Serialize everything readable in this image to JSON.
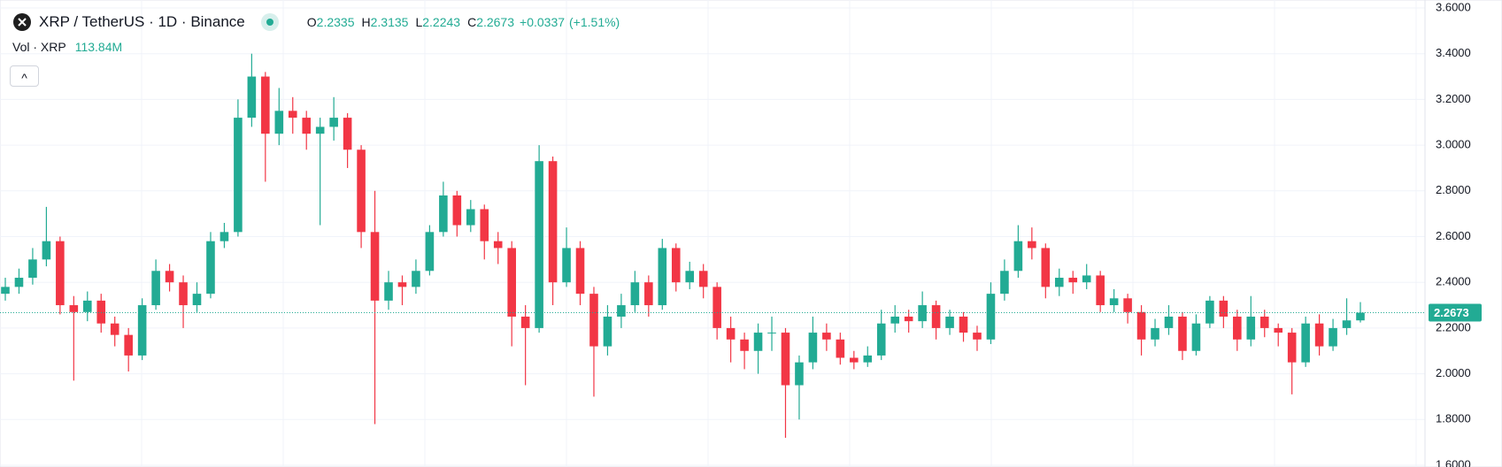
{
  "chart_data": {
    "type": "candlestick",
    "title": "XRP / TetherUS · 1D · Binance",
    "ohlc_labels": [
      "O",
      "H",
      "L",
      "C"
    ],
    "change": {
      "value": 0.0337,
      "label": "+0.0337"
    },
    "change_pct": {
      "value": 1.51,
      "label": "(+1.51%)"
    },
    "volume_label": "Vol · XRP",
    "volume_value": "113.84M",
    "up_color": "#22ab94",
    "down_color": "#f23645",
    "ylim": [
      1.6,
      3.6
    ],
    "yticks": [
      {
        "value": 1.6,
        "label": "1.6000"
      },
      {
        "value": 1.8,
        "label": "1.8000"
      },
      {
        "value": 2.0,
        "label": "2.0000"
      },
      {
        "value": 2.2,
        "label": "2.2000"
      },
      {
        "value": 2.4,
        "label": "2.4000"
      },
      {
        "value": 2.6,
        "label": "2.6000"
      },
      {
        "value": 2.8,
        "label": "2.8000"
      },
      {
        "value": 3.0,
        "label": "3.0000"
      },
      {
        "value": 3.2,
        "label": "3.2000"
      },
      {
        "value": 3.4,
        "label": "3.4000"
      },
      {
        "value": 3.6,
        "label": "3.6000"
      }
    ],
    "grid": true,
    "candles": [
      [
        2.35,
        2.42,
        2.32,
        2.38
      ],
      [
        2.38,
        2.46,
        2.35,
        2.42
      ],
      [
        2.42,
        2.55,
        2.39,
        2.5
      ],
      [
        2.5,
        2.73,
        2.47,
        2.58
      ],
      [
        2.58,
        2.6,
        2.26,
        2.3
      ],
      [
        2.3,
        2.34,
        1.97,
        2.27
      ],
      [
        2.27,
        2.36,
        2.23,
        2.32
      ],
      [
        2.32,
        2.35,
        2.18,
        2.22
      ],
      [
        2.22,
        2.25,
        2.12,
        2.17
      ],
      [
        2.17,
        2.2,
        2.01,
        2.08
      ],
      [
        2.08,
        2.33,
        2.06,
        2.3
      ],
      [
        2.3,
        2.5,
        2.28,
        2.45
      ],
      [
        2.45,
        2.48,
        2.36,
        2.4
      ],
      [
        2.4,
        2.43,
        2.2,
        2.3
      ],
      [
        2.3,
        2.4,
        2.27,
        2.35
      ],
      [
        2.35,
        2.62,
        2.33,
        2.58
      ],
      [
        2.58,
        2.66,
        2.55,
        2.62
      ],
      [
        2.62,
        3.2,
        2.6,
        3.12
      ],
      [
        3.12,
        3.4,
        3.08,
        3.3
      ],
      [
        3.3,
        3.32,
        2.84,
        3.05
      ],
      [
        3.05,
        3.25,
        3.0,
        3.15
      ],
      [
        3.15,
        3.21,
        3.05,
        3.12
      ],
      [
        3.12,
        3.15,
        2.98,
        3.05
      ],
      [
        3.05,
        3.12,
        2.65,
        3.08
      ],
      [
        3.08,
        3.21,
        3.02,
        3.12
      ],
      [
        3.12,
        3.14,
        2.9,
        2.98
      ],
      [
        2.98,
        3.0,
        2.55,
        2.62
      ],
      [
        2.62,
        2.8,
        1.78,
        2.32
      ],
      [
        2.32,
        2.45,
        2.28,
        2.4
      ],
      [
        2.4,
        2.43,
        2.3,
        2.38
      ],
      [
        2.38,
        2.5,
        2.35,
        2.45
      ],
      [
        2.45,
        2.65,
        2.43,
        2.62
      ],
      [
        2.62,
        2.84,
        2.6,
        2.78
      ],
      [
        2.78,
        2.8,
        2.6,
        2.65
      ],
      [
        2.65,
        2.76,
        2.62,
        2.72
      ],
      [
        2.72,
        2.74,
        2.5,
        2.58
      ],
      [
        2.58,
        2.62,
        2.48,
        2.55
      ],
      [
        2.55,
        2.58,
        2.12,
        2.25
      ],
      [
        2.25,
        2.3,
        1.95,
        2.2
      ],
      [
        2.2,
        3.0,
        2.18,
        2.93
      ],
      [
        2.93,
        2.95,
        2.3,
        2.4
      ],
      [
        2.4,
        2.64,
        2.38,
        2.55
      ],
      [
        2.55,
        2.58,
        2.3,
        2.35
      ],
      [
        2.35,
        2.38,
        1.9,
        2.12
      ],
      [
        2.12,
        2.3,
        2.08,
        2.25
      ],
      [
        2.25,
        2.35,
        2.2,
        2.3
      ],
      [
        2.3,
        2.45,
        2.27,
        2.4
      ],
      [
        2.4,
        2.43,
        2.25,
        2.3
      ],
      [
        2.3,
        2.59,
        2.28,
        2.55
      ],
      [
        2.55,
        2.57,
        2.36,
        2.4
      ],
      [
        2.4,
        2.49,
        2.37,
        2.45
      ],
      [
        2.45,
        2.48,
        2.33,
        2.38
      ],
      [
        2.38,
        2.4,
        2.15,
        2.2
      ],
      [
        2.2,
        2.25,
        2.05,
        2.15
      ],
      [
        2.15,
        2.18,
        2.02,
        2.1
      ],
      [
        2.1,
        2.22,
        2.0,
        2.18
      ],
      [
        2.18,
        2.25,
        2.1,
        2.18
      ],
      [
        2.18,
        2.2,
        1.72,
        1.95
      ],
      [
        1.95,
        2.08,
        1.8,
        2.05
      ],
      [
        2.05,
        2.25,
        2.02,
        2.18
      ],
      [
        2.18,
        2.22,
        2.1,
        2.15
      ],
      [
        2.15,
        2.18,
        2.04,
        2.07
      ],
      [
        2.07,
        2.1,
        2.02,
        2.05
      ],
      [
        2.05,
        2.12,
        2.03,
        2.08
      ],
      [
        2.08,
        2.28,
        2.06,
        2.22
      ],
      [
        2.22,
        2.3,
        2.18,
        2.25
      ],
      [
        2.25,
        2.28,
        2.18,
        2.23
      ],
      [
        2.23,
        2.36,
        2.2,
        2.3
      ],
      [
        2.3,
        2.32,
        2.15,
        2.2
      ],
      [
        2.2,
        2.28,
        2.17,
        2.25
      ],
      [
        2.25,
        2.27,
        2.14,
        2.18
      ],
      [
        2.18,
        2.21,
        2.1,
        2.15
      ],
      [
        2.15,
        2.4,
        2.13,
        2.35
      ],
      [
        2.35,
        2.5,
        2.32,
        2.45
      ],
      [
        2.45,
        2.65,
        2.42,
        2.58
      ],
      [
        2.58,
        2.64,
        2.5,
        2.55
      ],
      [
        2.55,
        2.57,
        2.33,
        2.38
      ],
      [
        2.38,
        2.46,
        2.34,
        2.42
      ],
      [
        2.42,
        2.45,
        2.35,
        2.4
      ],
      [
        2.4,
        2.48,
        2.37,
        2.43
      ],
      [
        2.43,
        2.45,
        2.27,
        2.3
      ],
      [
        2.3,
        2.37,
        2.27,
        2.33
      ],
      [
        2.33,
        2.35,
        2.22,
        2.27
      ],
      [
        2.27,
        2.3,
        2.08,
        2.15
      ],
      [
        2.15,
        2.24,
        2.12,
        2.2
      ],
      [
        2.2,
        2.3,
        2.17,
        2.25
      ],
      [
        2.25,
        2.27,
        2.06,
        2.1
      ],
      [
        2.1,
        2.26,
        2.08,
        2.22
      ],
      [
        2.22,
        2.34,
        2.2,
        2.32
      ],
      [
        2.32,
        2.34,
        2.2,
        2.25
      ],
      [
        2.25,
        2.28,
        2.1,
        2.15
      ],
      [
        2.15,
        2.34,
        2.12,
        2.25
      ],
      [
        2.25,
        2.28,
        2.16,
        2.2
      ],
      [
        2.2,
        2.22,
        2.12,
        2.18
      ],
      [
        2.18,
        2.2,
        1.91,
        2.05
      ],
      [
        2.05,
        2.25,
        2.03,
        2.22
      ],
      [
        2.22,
        2.26,
        2.08,
        2.12
      ],
      [
        2.12,
        2.24,
        2.1,
        2.2
      ],
      [
        2.2,
        2.33,
        2.17,
        2.2335
      ],
      [
        2.2335,
        2.3135,
        2.2243,
        2.2673
      ]
    ]
  }
}
